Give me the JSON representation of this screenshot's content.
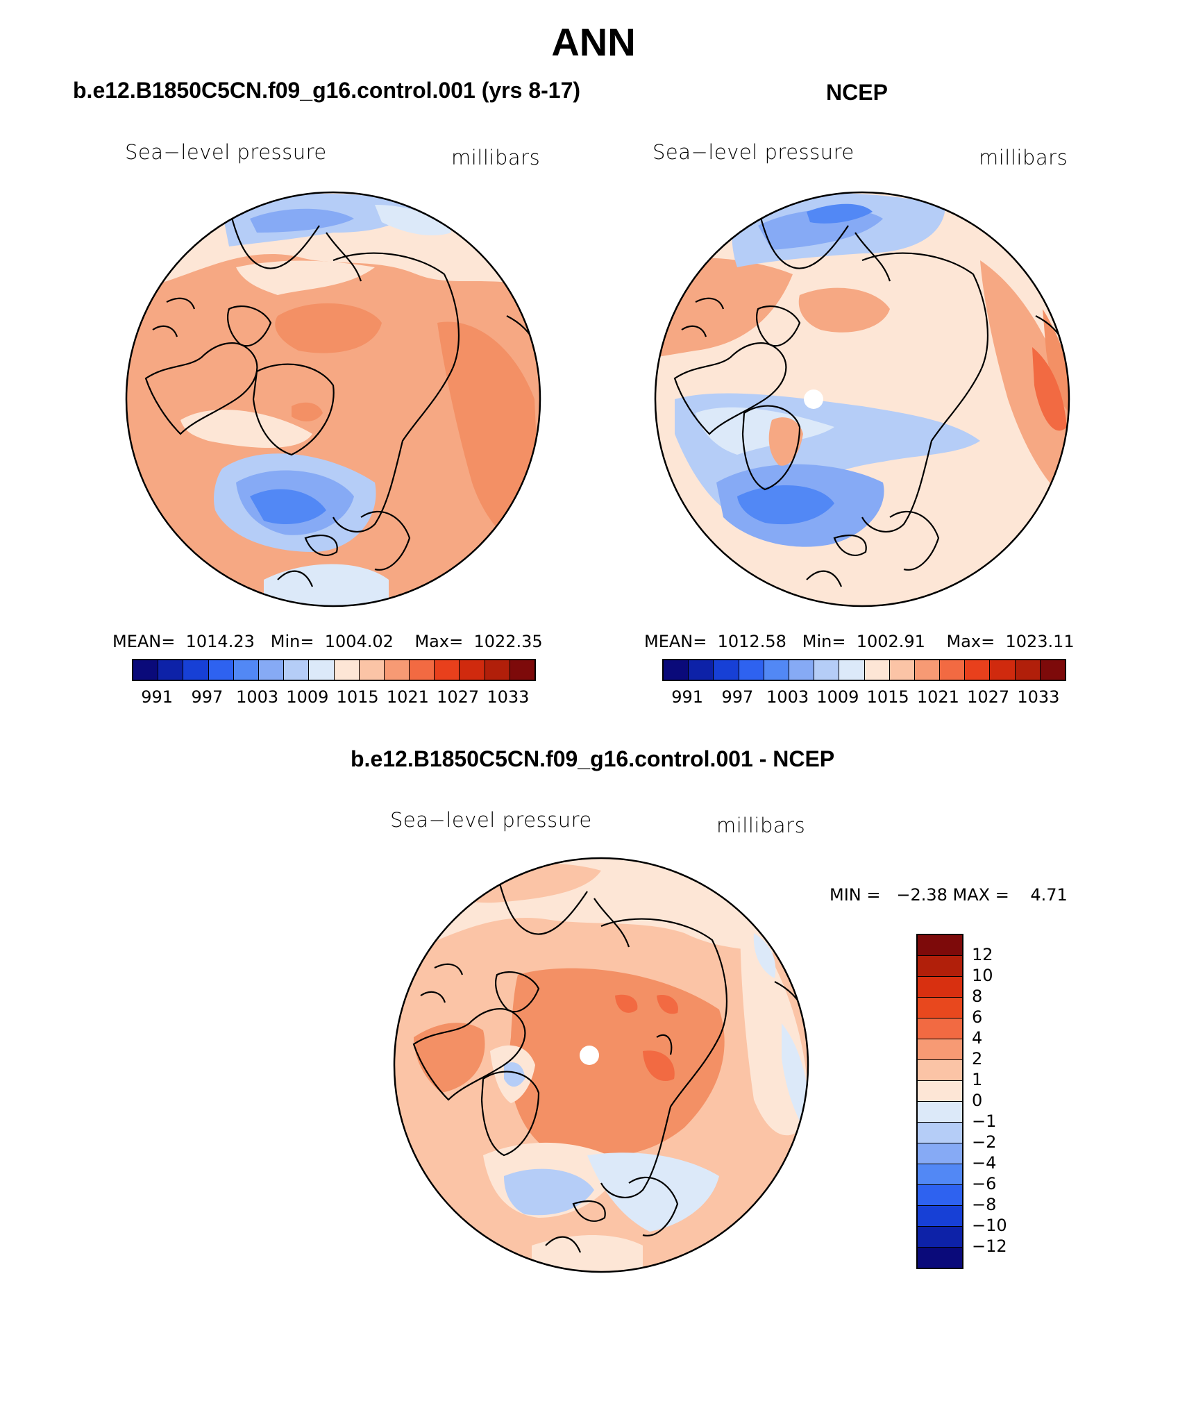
{
  "title": "ANN",
  "panels": {
    "model": {
      "heading": "b.e12.B1850C5CN.f09_g16.control.001 (yrs 8-17)",
      "left_label": "Sea−level pressure",
      "right_label": "millibars",
      "stats": "MEAN=  1014.23   Min=  1004.02    Max=  1022.35"
    },
    "obs": {
      "heading": "NCEP",
      "left_label": "Sea−level pressure",
      "right_label": "millibars",
      "stats": "MEAN=  1012.58   Min=  1002.91    Max=  1023.11"
    },
    "diff": {
      "heading": "b.e12.B1850C5CN.f09_g16.control.001 - NCEP",
      "left_label": "Sea−level pressure",
      "right_label": "millibars",
      "stats": "MIN =   −2.38 MAX =    4.71"
    }
  },
  "colorbar_abs": {
    "ticks": [
      "991",
      "997",
      "1003",
      "1009",
      "1015",
      "1021",
      "1027",
      "1033"
    ],
    "colors": [
      "#0a0a7a",
      "#0d22a8",
      "#1740d6",
      "#2e62f0",
      "#5288f5",
      "#86aaf5",
      "#b5cdf7",
      "#dce9f9",
      "#fde6d6",
      "#fbc4a6",
      "#f79a74",
      "#f26a42",
      "#e8401c",
      "#d02a0e",
      "#b11f0a",
      "#7d0a0a"
    ]
  },
  "colorbar_diff": {
    "ticks": [
      "12",
      "10",
      "8",
      "6",
      "4",
      "2",
      "1",
      "0",
      "−1",
      "−2",
      "−4",
      "−6",
      "−8",
      "−10",
      "−12"
    ],
    "colors": [
      "#7d0a0a",
      "#b11f0a",
      "#d83010",
      "#e8481e",
      "#f26a42",
      "#f79a74",
      "#fbc4a6",
      "#fde6d6",
      "#dce9f9",
      "#b5cdf7",
      "#86aaf5",
      "#5288f5",
      "#2e62f0",
      "#1740d6",
      "#0d22a8",
      "#0a0a7a"
    ]
  },
  "chart_data": {
    "type": "heatmap",
    "projection": "north polar stereographic",
    "variable": "Sea-level pressure",
    "units": "millibars",
    "season": "ANN",
    "maps": [
      {
        "name": "b.e12.B1850C5CN.f09_g16.control.001 (yrs 8-17)",
        "mean": 1014.23,
        "min": 1004.02,
        "max": 1022.35
      },
      {
        "name": "NCEP",
        "mean": 1012.58,
        "min": 1002.91,
        "max": 1023.11
      },
      {
        "name": "b.e12.B1850C5CN.f09_g16.control.001 - NCEP",
        "min": -2.38,
        "max": 4.71
      }
    ],
    "abs_levels": [
      991,
      997,
      1003,
      1009,
      1015,
      1021,
      1027,
      1033
    ],
    "diff_levels": [
      -12,
      -10,
      -8,
      -6,
      -4,
      -2,
      -1,
      0,
      1,
      2,
      4,
      6,
      8,
      10,
      12
    ]
  }
}
